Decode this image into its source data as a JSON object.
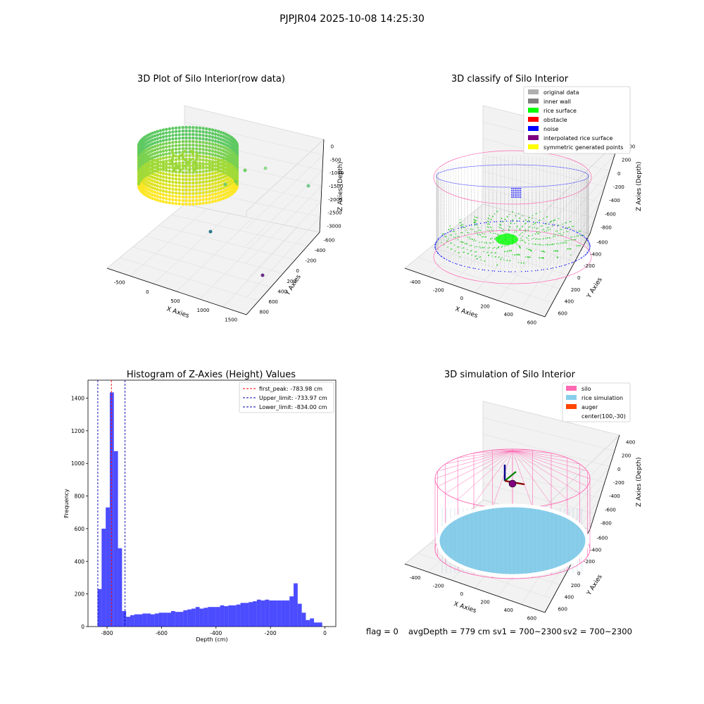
{
  "figure": {
    "suptitle": "PJPJR04 2025-10-08 14:25:30",
    "status": {
      "flag": "flag = 0",
      "avg_depth": "avgDepth = 779 cm",
      "sv1": "sv1 = 700~2300",
      "sv2": "sv2 = 700~2300"
    }
  },
  "colors": {
    "axis": "#000000",
    "pane": "#f2f2f2",
    "grid": "#e0e0e0",
    "histogram_bar": "#0000ff",
    "first_peak_line": "#ff0000",
    "limit_lines": "#0000aa",
    "silo": "#ff69b4",
    "rice_simulation": "#87ceeb"
  },
  "chart_data": [
    {
      "type": "scatter",
      "subtype": "3d",
      "title": "3D Plot of Silo Interior(row data)",
      "xlabel": "X Axies",
      "ylabel": "Y Axies",
      "zlabel": "Z Axies (Depth)",
      "x_ticks": [
        "-500",
        "0",
        "500",
        "1000",
        "1500"
      ],
      "y_ticks": [
        "-600",
        "-400",
        "-200",
        "0",
        "200",
        "400",
        "600",
        "800"
      ],
      "z_ticks": [
        "-3000",
        "-2500",
        "-2000",
        "-1500",
        "-1000",
        "-500",
        "0"
      ],
      "xlim": [
        -700,
        1800
      ],
      "ylim": [
        -700,
        900
      ],
      "zlim": [
        -3200,
        0
      ],
      "colormap": "viridis",
      "outliers": [
        {
          "x": 900,
          "y": 300,
          "z": -900
        },
        {
          "x": 1200,
          "y": 250,
          "z": -1200
        },
        {
          "x": 400,
          "y": -100,
          "z": -2500
        },
        {
          "x": 1000,
          "y": -500,
          "z": -3000
        }
      ]
    },
    {
      "type": "scatter",
      "subtype": "3d",
      "title": "3D classify of Silo Interior",
      "xlabel": "X Axies",
      "ylabel": "Y Axies",
      "zlabel": "Z Axies (Depth)",
      "x_ticks": [
        "-400",
        "-200",
        "0",
        "200",
        "400",
        "600"
      ],
      "y_ticks": [
        "-600",
        "-400",
        "-200",
        "0",
        "200",
        "400",
        "600"
      ],
      "z_ticks": [
        "-800",
        "-600",
        "-400",
        "-200",
        "0",
        "200",
        "400"
      ],
      "xlim": [
        -500,
        700
      ],
      "ylim": [
        -700,
        700
      ],
      "zlim": [
        -900,
        450
      ],
      "legend_position": "top-right",
      "legend": [
        {
          "label": "original data",
          "color": "#b0b0b0"
        },
        {
          "label": "inner wall",
          "color": "#808080"
        },
        {
          "label": "rice surface",
          "color": "#00ff00"
        },
        {
          "label": "obstacle",
          "color": "#ff0000"
        },
        {
          "label": "noise",
          "color": "#0000ff"
        },
        {
          "label": "interpolated rice surface",
          "color": "#800080"
        },
        {
          "label": "symmetric generated points",
          "color": "#ffff00"
        }
      ]
    },
    {
      "type": "bar",
      "subtype": "histogram",
      "title": "Histogram of Z-Axies (Height) Values",
      "xlabel": "Depth (cm)",
      "ylabel": "Frequency",
      "xlim": [
        -870,
        40
      ],
      "ylim": [
        0,
        1510
      ],
      "x_ticks": [
        -800,
        -600,
        -400,
        -200,
        0
      ],
      "y_ticks": [
        0,
        200,
        400,
        600,
        800,
        1000,
        1200,
        1400
      ],
      "bin_width": 15,
      "bins": [
        {
          "start": -850,
          "end": -835,
          "value": 0
        },
        {
          "start": -835,
          "end": -820,
          "value": 230
        },
        {
          "start": -820,
          "end": -805,
          "value": 600
        },
        {
          "start": -805,
          "end": -790,
          "value": 730
        },
        {
          "start": -790,
          "end": -775,
          "value": 1435
        },
        {
          "start": -775,
          "end": -760,
          "value": 1075
        },
        {
          "start": -760,
          "end": -745,
          "value": 480
        },
        {
          "start": -745,
          "end": -730,
          "value": 95
        },
        {
          "start": -730,
          "end": -715,
          "value": 60
        },
        {
          "start": -715,
          "end": -700,
          "value": 70
        },
        {
          "start": -700,
          "end": -685,
          "value": 75
        },
        {
          "start": -685,
          "end": -670,
          "value": 75
        },
        {
          "start": -670,
          "end": -655,
          "value": 80
        },
        {
          "start": -655,
          "end": -640,
          "value": 80
        },
        {
          "start": -640,
          "end": -625,
          "value": 75
        },
        {
          "start": -625,
          "end": -610,
          "value": 80
        },
        {
          "start": -610,
          "end": -595,
          "value": 85
        },
        {
          "start": -595,
          "end": -580,
          "value": 85
        },
        {
          "start": -580,
          "end": -565,
          "value": 85
        },
        {
          "start": -565,
          "end": -550,
          "value": 95
        },
        {
          "start": -550,
          "end": -535,
          "value": 90
        },
        {
          "start": -535,
          "end": -520,
          "value": 90
        },
        {
          "start": -520,
          "end": -505,
          "value": 100
        },
        {
          "start": -505,
          "end": -490,
          "value": 105
        },
        {
          "start": -490,
          "end": -475,
          "value": 110
        },
        {
          "start": -475,
          "end": -460,
          "value": 120
        },
        {
          "start": -460,
          "end": -445,
          "value": 110
        },
        {
          "start": -445,
          "end": -430,
          "value": 115
        },
        {
          "start": -430,
          "end": -415,
          "value": 120
        },
        {
          "start": -415,
          "end": -400,
          "value": 120
        },
        {
          "start": -400,
          "end": -385,
          "value": 120
        },
        {
          "start": -385,
          "end": -370,
          "value": 130
        },
        {
          "start": -370,
          "end": -355,
          "value": 125
        },
        {
          "start": -355,
          "end": -340,
          "value": 130
        },
        {
          "start": -340,
          "end": -325,
          "value": 130
        },
        {
          "start": -325,
          "end": -310,
          "value": 135
        },
        {
          "start": -310,
          "end": -295,
          "value": 145
        },
        {
          "start": -295,
          "end": -280,
          "value": 145
        },
        {
          "start": -280,
          "end": -265,
          "value": 150
        },
        {
          "start": -265,
          "end": -250,
          "value": 155
        },
        {
          "start": -250,
          "end": -235,
          "value": 165
        },
        {
          "start": -235,
          "end": -220,
          "value": 160
        },
        {
          "start": -220,
          "end": -205,
          "value": 165
        },
        {
          "start": -205,
          "end": -190,
          "value": 160
        },
        {
          "start": -190,
          "end": -175,
          "value": 160
        },
        {
          "start": -175,
          "end": -160,
          "value": 160
        },
        {
          "start": -160,
          "end": -145,
          "value": 160
        },
        {
          "start": -145,
          "end": -130,
          "value": 160
        },
        {
          "start": -130,
          "end": -115,
          "value": 185
        },
        {
          "start": -115,
          "end": -100,
          "value": 265
        },
        {
          "start": -100,
          "end": -85,
          "value": 140
        },
        {
          "start": -85,
          "end": -70,
          "value": 85
        },
        {
          "start": -70,
          "end": -55,
          "value": 40
        },
        {
          "start": -55,
          "end": -40,
          "value": 50
        },
        {
          "start": -40,
          "end": -25,
          "value": 25
        },
        {
          "start": -25,
          "end": -10,
          "value": 25
        }
      ],
      "vlines": [
        {
          "label": "first_peak: -783.98 cm",
          "x": -783.98,
          "color": "#ff0000",
          "style": "dashed"
        },
        {
          "label": "Upper_limit: -733.97 cm",
          "x": -733.97,
          "color": "#0000aa",
          "style": "dashed"
        },
        {
          "label": "Lower_limit: -834.00 cm",
          "x": -834.0,
          "color": "#0000aa",
          "style": "dashed"
        }
      ],
      "legend_position": "top-right"
    },
    {
      "type": "scatter",
      "subtype": "3d-surface",
      "title": "3D simulation of Silo Interior",
      "xlabel": "X Axies",
      "ylabel": "Y Axies",
      "zlabel": "Z Axies (Depth)",
      "x_ticks": [
        "-400",
        "-200",
        "0",
        "200",
        "400",
        "600"
      ],
      "y_ticks": [
        "-600",
        "-400",
        "-200",
        "0",
        "200",
        "400",
        "600"
      ],
      "z_ticks": [
        "-800",
        "-600",
        "-400",
        "-200",
        "0",
        "200",
        "400"
      ],
      "xlim": [
        -500,
        700
      ],
      "ylim": [
        -700,
        700
      ],
      "zlim": [
        -900,
        450
      ],
      "legend_position": "top-right",
      "legend": [
        {
          "label": "silo",
          "color": "#ff69b4"
        },
        {
          "label": "rice simulation",
          "color": "#87ceeb"
        },
        {
          "label": "auger",
          "color": "#ff4500"
        },
        {
          "label": "center(100,-30)",
          "color": ""
        }
      ]
    }
  ]
}
